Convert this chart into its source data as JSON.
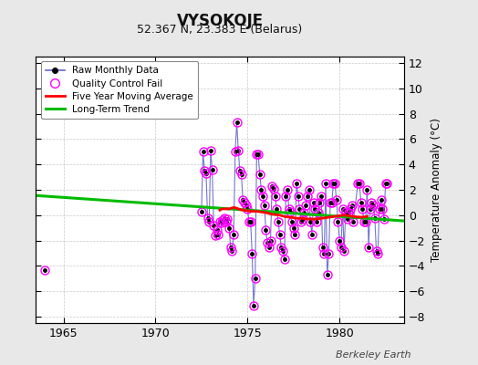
{
  "title": "VYSOKOJE",
  "subtitle": "52.367 N, 23.383 E (Belarus)",
  "ylabel": "Temperature Anomaly (°C)",
  "credit": "Berkeley Earth",
  "xlim": [
    1963.5,
    1983.5
  ],
  "ylim": [
    -8.5,
    12.5
  ],
  "yticks": [
    -8,
    -6,
    -4,
    -2,
    0,
    2,
    4,
    6,
    8,
    10,
    12
  ],
  "xticks": [
    1965,
    1970,
    1975,
    1980
  ],
  "bg_color": "#e8e8e8",
  "plot_bg_color": "#ffffff",
  "raw_color": "#6666cc",
  "raw_marker_color": "#000000",
  "qc_color": "#ff00ff",
  "moving_avg_color": "#ff0000",
  "trend_color": "#00bb00",
  "trend_x": [
    1963.5,
    1983.5
  ],
  "trend_y": [
    1.55,
    -0.45
  ],
  "raw_data": [
    [
      1972.5,
      0.3
    ],
    [
      1972.583,
      5.0
    ],
    [
      1972.667,
      3.5
    ],
    [
      1972.75,
      3.3
    ],
    [
      1972.833,
      -0.2
    ],
    [
      1972.917,
      -0.5
    ],
    [
      1973.0,
      5.1
    ],
    [
      1973.083,
      3.6
    ],
    [
      1973.167,
      -0.8
    ],
    [
      1973.25,
      -1.6
    ],
    [
      1973.333,
      -1.2
    ],
    [
      1973.417,
      -1.5
    ],
    [
      1973.5,
      -0.5
    ],
    [
      1973.583,
      -0.6
    ],
    [
      1973.667,
      -0.4
    ],
    [
      1973.75,
      -0.2
    ],
    [
      1973.833,
      -0.5
    ],
    [
      1973.917,
      -0.3
    ],
    [
      1974.0,
      -1.0
    ],
    [
      1974.083,
      -2.5
    ],
    [
      1974.167,
      -2.8
    ],
    [
      1974.25,
      -1.5
    ],
    [
      1974.333,
      5.0
    ],
    [
      1974.417,
      7.3
    ],
    [
      1974.5,
      5.1
    ],
    [
      1974.583,
      3.5
    ],
    [
      1974.667,
      3.2
    ],
    [
      1974.75,
      1.2
    ],
    [
      1974.833,
      1.0
    ],
    [
      1974.917,
      0.8
    ],
    [
      1975.0,
      0.5
    ],
    [
      1975.083,
      -0.5
    ],
    [
      1975.167,
      -0.5
    ],
    [
      1975.25,
      -3.0
    ],
    [
      1975.333,
      -7.1
    ],
    [
      1975.417,
      -5.0
    ],
    [
      1975.5,
      4.8
    ],
    [
      1975.583,
      4.8
    ],
    [
      1975.667,
      3.2
    ],
    [
      1975.75,
      2.0
    ],
    [
      1975.833,
      1.5
    ],
    [
      1975.917,
      0.8
    ],
    [
      1976.0,
      -1.2
    ],
    [
      1976.083,
      -2.2
    ],
    [
      1976.167,
      -2.5
    ],
    [
      1976.25,
      -2.0
    ],
    [
      1976.333,
      2.3
    ],
    [
      1976.417,
      2.1
    ],
    [
      1976.5,
      1.5
    ],
    [
      1976.583,
      0.5
    ],
    [
      1976.667,
      -0.5
    ],
    [
      1976.75,
      -1.5
    ],
    [
      1976.833,
      -2.5
    ],
    [
      1976.917,
      -2.8
    ],
    [
      1977.0,
      -3.5
    ],
    [
      1977.083,
      1.5
    ],
    [
      1977.167,
      2.0
    ],
    [
      1977.25,
      0.5
    ],
    [
      1977.333,
      0.3
    ],
    [
      1977.417,
      -0.5
    ],
    [
      1977.5,
      -1.0
    ],
    [
      1977.583,
      -1.5
    ],
    [
      1977.667,
      2.5
    ],
    [
      1977.75,
      1.5
    ],
    [
      1977.833,
      0.5
    ],
    [
      1977.917,
      -0.5
    ],
    [
      1978.0,
      -0.3
    ],
    [
      1978.083,
      0.2
    ],
    [
      1978.167,
      0.8
    ],
    [
      1978.25,
      1.5
    ],
    [
      1978.333,
      2.0
    ],
    [
      1978.417,
      -0.5
    ],
    [
      1978.5,
      -1.5
    ],
    [
      1978.583,
      1.0
    ],
    [
      1978.667,
      0.5
    ],
    [
      1978.75,
      -0.5
    ],
    [
      1978.833,
      0.2
    ],
    [
      1978.917,
      1.0
    ],
    [
      1979.0,
      1.5
    ],
    [
      1979.083,
      -2.5
    ],
    [
      1979.167,
      -3.0
    ],
    [
      1979.25,
      2.5
    ],
    [
      1979.333,
      -4.7
    ],
    [
      1979.417,
      -3.0
    ],
    [
      1979.5,
      1.0
    ],
    [
      1979.583,
      1.0
    ],
    [
      1979.667,
      2.5
    ],
    [
      1979.75,
      2.5
    ],
    [
      1979.833,
      1.2
    ],
    [
      1979.917,
      -0.5
    ],
    [
      1980.0,
      -2.0
    ],
    [
      1980.083,
      -2.5
    ],
    [
      1980.167,
      0.5
    ],
    [
      1980.25,
      -2.8
    ],
    [
      1980.333,
      0.3
    ],
    [
      1980.417,
      -0.3
    ],
    [
      1980.5,
      0.2
    ],
    [
      1980.583,
      0.5
    ],
    [
      1980.667,
      0.8
    ],
    [
      1980.75,
      -0.5
    ],
    [
      1981.0,
      2.5
    ],
    [
      1981.083,
      2.5
    ],
    [
      1981.167,
      1.0
    ],
    [
      1981.25,
      0.5
    ],
    [
      1981.333,
      -0.5
    ],
    [
      1981.417,
      -0.5
    ],
    [
      1981.5,
      2.0
    ],
    [
      1981.583,
      -2.5
    ],
    [
      1981.667,
      0.5
    ],
    [
      1981.75,
      1.0
    ],
    [
      1981.833,
      0.8
    ],
    [
      1981.917,
      -0.2
    ],
    [
      1982.0,
      -2.8
    ],
    [
      1982.083,
      -3.0
    ],
    [
      1982.167,
      0.5
    ],
    [
      1982.25,
      1.2
    ],
    [
      1982.333,
      0.5
    ],
    [
      1982.417,
      -0.3
    ],
    [
      1982.5,
      2.5
    ],
    [
      1982.583,
      2.5
    ]
  ],
  "isolated_points": [
    [
      1964.0,
      -4.3
    ]
  ],
  "qc_fail_indices": [
    0,
    1,
    2,
    3,
    4,
    5,
    6,
    7,
    8,
    9,
    10,
    11,
    12,
    13,
    14,
    15,
    16,
    17,
    18,
    19,
    20,
    21,
    22,
    23,
    24,
    25,
    26,
    27,
    28,
    29,
    30,
    31,
    32,
    33,
    34,
    35,
    36,
    37,
    38,
    39,
    40,
    41,
    42,
    43,
    44,
    45,
    46,
    47,
    48,
    49,
    50,
    51,
    52,
    53,
    54,
    55,
    56,
    57,
    58,
    59,
    60,
    61,
    62,
    63,
    64,
    65,
    66,
    67,
    68,
    69,
    70,
    71,
    72,
    73,
    74,
    75,
    76,
    77,
    78,
    79,
    80,
    81,
    82,
    83,
    84,
    85,
    86,
    87,
    88,
    89,
    90,
    91,
    92,
    93,
    94,
    95,
    96,
    97,
    98,
    99,
    100,
    101,
    102,
    103,
    104,
    105,
    106,
    107,
    108,
    109,
    110,
    111,
    112,
    113,
    114,
    115,
    116,
    117
  ],
  "moving_avg": [
    [
      1973.5,
      0.4
    ],
    [
      1973.75,
      0.5
    ],
    [
      1974.0,
      0.5
    ],
    [
      1974.25,
      0.6
    ],
    [
      1974.5,
      0.5
    ],
    [
      1974.75,
      0.4
    ],
    [
      1975.0,
      0.35
    ],
    [
      1975.25,
      0.3
    ],
    [
      1975.5,
      0.3
    ],
    [
      1975.75,
      0.25
    ],
    [
      1976.0,
      0.2
    ],
    [
      1976.25,
      0.1
    ],
    [
      1976.5,
      0.05
    ],
    [
      1976.75,
      0.0
    ],
    [
      1977.0,
      -0.1
    ],
    [
      1977.25,
      -0.15
    ],
    [
      1977.5,
      -0.2
    ],
    [
      1977.75,
      -0.25
    ],
    [
      1978.0,
      -0.25
    ],
    [
      1978.25,
      -0.3
    ],
    [
      1978.5,
      -0.3
    ],
    [
      1978.75,
      -0.3
    ],
    [
      1979.0,
      -0.25
    ],
    [
      1979.25,
      -0.2
    ],
    [
      1979.5,
      -0.15
    ],
    [
      1979.75,
      -0.1
    ],
    [
      1980.0,
      -0.05
    ],
    [
      1980.25,
      0.0
    ],
    [
      1980.5,
      -0.05
    ],
    [
      1980.75,
      -0.1
    ],
    [
      1981.0,
      -0.15
    ],
    [
      1981.25,
      -0.15
    ],
    [
      1981.5,
      -0.1
    ]
  ]
}
